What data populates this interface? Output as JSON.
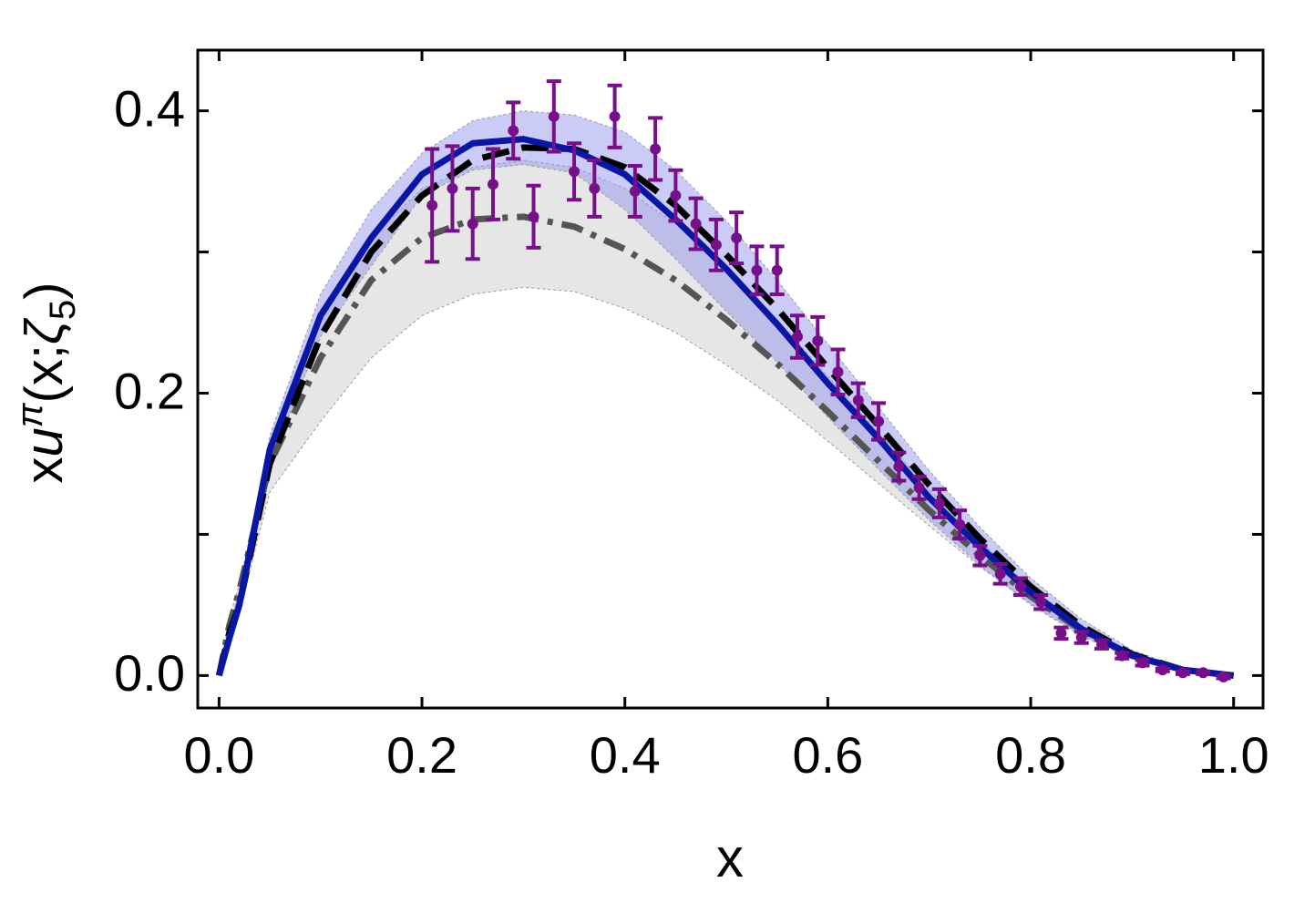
{
  "chart_data": {
    "type": "line",
    "xlabel": "x",
    "ylabel": [
      "x",
      "u",
      "π",
      "(x;",
      "ζ",
      "5",
      ")"
    ],
    "xlim": [
      -0.021,
      1.029
    ],
    "ylim": [
      -0.023,
      0.443
    ],
    "xticks": [
      {
        "value": 0,
        "label": "0.0"
      },
      {
        "value": 0.2,
        "label": "0.2"
      },
      {
        "value": 0.4,
        "label": "0.4"
      },
      {
        "value": 0.6,
        "label": "0.6"
      },
      {
        "value": 0.8,
        "label": "0.8"
      },
      {
        "value": 1,
        "label": "1.0"
      }
    ],
    "yticks": [
      {
        "value": 0,
        "label": "0.0"
      },
      {
        "value": 0.2,
        "label": "0.2"
      },
      {
        "value": 0.4,
        "label": "0.4"
      }
    ],
    "yminor_ticks": [
      0.1,
      0.3
    ],
    "grid": false,
    "x": [
      0,
      0.01,
      0.02,
      0.05,
      0.1,
      0.15,
      0.2,
      0.25,
      0.3,
      0.35,
      0.4,
      0.45,
      0.5,
      0.55,
      0.6,
      0.65,
      0.7,
      0.75,
      0.8,
      0.85,
      0.9,
      0.95,
      1.0
    ],
    "bands": [
      {
        "color": "#e3e3e3",
        "upper": [
          0,
          0.04,
          0.065,
          0.16,
          0.25,
          0.31,
          0.345,
          0.36,
          0.365,
          0.36,
          0.345,
          0.32,
          0.288,
          0.252,
          0.212,
          0.172,
          0.132,
          0.095,
          0.062,
          0.036,
          0.016,
          0.004,
          0
        ],
        "lower": [
          0,
          0.025,
          0.045,
          0.13,
          0.18,
          0.225,
          0.255,
          0.27,
          0.275,
          0.272,
          0.26,
          0.243,
          0.22,
          0.195,
          0.166,
          0.136,
          0.106,
          0.077,
          0.051,
          0.029,
          0.013,
          0.003,
          0
        ]
      },
      {
        "color": "#8c8cf0",
        "upper": [
          0,
          0.035,
          0.06,
          0.17,
          0.27,
          0.33,
          0.37,
          0.393,
          0.4,
          0.397,
          0.385,
          0.358,
          0.322,
          0.28,
          0.235,
          0.19,
          0.145,
          0.105,
          0.069,
          0.04,
          0.018,
          0.005,
          0
        ],
        "lower": [
          0,
          0.025,
          0.045,
          0.15,
          0.24,
          0.29,
          0.34,
          0.358,
          0.362,
          0.356,
          0.33,
          0.295,
          0.258,
          0.222,
          0.183,
          0.146,
          0.11,
          0.078,
          0.05,
          0.028,
          0.012,
          0.003,
          0
        ]
      }
    ],
    "series": [
      {
        "color": "#555555",
        "style": "dashdot",
        "values": [
          0,
          0.035,
          0.06,
          0.15,
          0.225,
          0.28,
          0.31,
          0.323,
          0.325,
          0.318,
          0.302,
          0.28,
          0.252,
          0.221,
          0.187,
          0.152,
          0.117,
          0.085,
          0.056,
          0.032,
          0.014,
          0.004,
          0
        ]
      },
      {
        "color": "#000000",
        "style": "dashed",
        "values": [
          0,
          0.03,
          0.05,
          0.15,
          0.24,
          0.3,
          0.34,
          0.365,
          0.374,
          0.373,
          0.36,
          0.333,
          0.298,
          0.26,
          0.218,
          0.177,
          0.135,
          0.097,
          0.063,
          0.035,
          0.015,
          0.004,
          0
        ]
      },
      {
        "color": "#0a16a6",
        "style": "solid",
        "values": [
          0,
          0.026,
          0.05,
          0.16,
          0.255,
          0.31,
          0.355,
          0.377,
          0.38,
          0.372,
          0.355,
          0.323,
          0.288,
          0.249,
          0.207,
          0.168,
          0.126,
          0.091,
          0.059,
          0.033,
          0.014,
          0.004,
          0
        ]
      }
    ],
    "points": {
      "color": "#770f8a",
      "x": [
        0.21,
        0.23,
        0.25,
        0.27,
        0.29,
        0.31,
        0.33,
        0.35,
        0.37,
        0.39,
        0.41,
        0.43,
        0.45,
        0.47,
        0.49,
        0.51,
        0.53,
        0.55,
        0.57,
        0.59,
        0.61,
        0.63,
        0.65,
        0.67,
        0.69,
        0.71,
        0.73,
        0.75,
        0.77,
        0.79,
        0.81,
        0.83,
        0.85,
        0.87,
        0.89,
        0.91,
        0.93,
        0.95,
        0.97,
        0.99
      ],
      "values": [
        0.333,
        0.345,
        0.32,
        0.348,
        0.386,
        0.325,
        0.396,
        0.357,
        0.345,
        0.396,
        0.343,
        0.373,
        0.34,
        0.32,
        0.305,
        0.31,
        0.287,
        0.287,
        0.24,
        0.237,
        0.215,
        0.195,
        0.18,
        0.148,
        0.133,
        0.122,
        0.107,
        0.085,
        0.072,
        0.063,
        0.052,
        0.03,
        0.027,
        0.022,
        0.014,
        0.009,
        0.004,
        0.002,
        0.002,
        -0.001
      ],
      "errors": [
        0.04,
        0.03,
        0.025,
        0.025,
        0.02,
        0.022,
        0.025,
        0.02,
        0.02,
        0.022,
        0.018,
        0.022,
        0.018,
        0.018,
        0.018,
        0.018,
        0.017,
        0.017,
        0.015,
        0.017,
        0.016,
        0.012,
        0.013,
        0.01,
        0.008,
        0.01,
        0.01,
        0.007,
        0.007,
        0.006,
        0.005,
        0.004,
        0.004,
        0.003,
        0.002,
        0.002,
        0.001,
        0.001,
        0.001,
        0.001
      ]
    }
  }
}
